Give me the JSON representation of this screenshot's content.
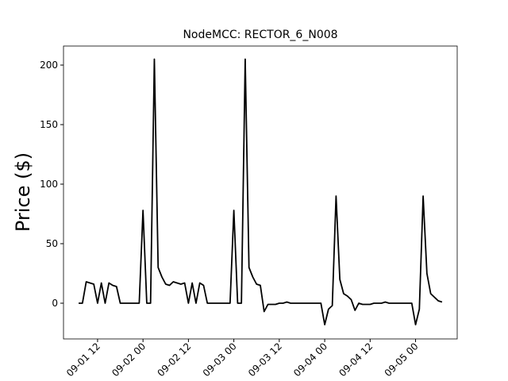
{
  "chart_data": {
    "type": "line",
    "title": "NodeMCC: RECTOR_6_N008",
    "y_label": "Price ($)",
    "x": [
      "09-01 07",
      "09-01 08",
      "09-01 09",
      "09-01 10",
      "09-01 11",
      "09-01 12",
      "09-01 13",
      "09-01 14",
      "09-01 15",
      "09-01 16",
      "09-01 17",
      "09-01 18",
      "09-01 19",
      "09-01 20",
      "09-01 21",
      "09-01 22",
      "09-01 23",
      "09-02 00",
      "09-02 01",
      "09-02 02",
      "09-02 03",
      "09-02 04",
      "09-02 05",
      "09-02 06",
      "09-02 07",
      "09-02 08",
      "09-02 09",
      "09-02 10",
      "09-02 11",
      "09-02 12",
      "09-02 13",
      "09-02 14",
      "09-02 15",
      "09-02 16",
      "09-02 17",
      "09-02 18",
      "09-02 19",
      "09-02 20",
      "09-02 21",
      "09-02 22",
      "09-02 23",
      "09-03 00",
      "09-03 01",
      "09-03 02",
      "09-03 03",
      "09-03 04",
      "09-03 05",
      "09-03 06",
      "09-03 07",
      "09-03 08",
      "09-03 09",
      "09-03 10",
      "09-03 11",
      "09-03 12",
      "09-03 13",
      "09-03 14",
      "09-03 15",
      "09-03 16",
      "09-03 17",
      "09-03 18",
      "09-03 19",
      "09-03 20",
      "09-03 21",
      "09-03 22",
      "09-03 23",
      "09-04 00",
      "09-04 01",
      "09-04 02",
      "09-04 03",
      "09-04 04",
      "09-04 05",
      "09-04 06",
      "09-04 07",
      "09-04 08",
      "09-04 09",
      "09-04 10",
      "09-04 11",
      "09-04 12",
      "09-04 13",
      "09-04 14",
      "09-04 15",
      "09-04 16",
      "09-04 17",
      "09-04 18",
      "09-04 19",
      "09-04 20",
      "09-04 21",
      "09-04 22",
      "09-04 23",
      "09-05 00",
      "09-05 01",
      "09-05 02",
      "09-05 03",
      "09-05 04",
      "09-05 05",
      "09-05 06",
      "09-05 07"
    ],
    "series": [
      {
        "color": "#000000",
        "values": [
          0,
          0,
          18,
          17,
          16,
          0,
          17,
          0,
          17,
          15,
          14,
          0,
          0,
          0,
          0,
          0,
          0,
          78,
          0,
          0,
          205,
          30,
          22,
          16,
          15,
          18,
          17,
          16,
          17,
          0,
          17,
          0,
          17,
          15,
          0,
          0,
          0,
          0,
          0,
          0,
          0,
          78,
          0,
          0,
          205,
          30,
          22,
          16,
          15,
          -7,
          -1,
          -1,
          -1,
          0,
          0,
          1,
          0,
          0,
          0,
          0,
          0,
          0,
          0,
          0,
          0,
          -18,
          -5,
          -2,
          90,
          20,
          8,
          6,
          3,
          -6,
          0,
          -1,
          -1,
          -1,
          0,
          0,
          0,
          1,
          0,
          0,
          0,
          0,
          0,
          0,
          0,
          -18,
          -5,
          90,
          25,
          8,
          5,
          2,
          1
        ]
      }
    ],
    "xlim": [
      "09-01 03",
      "09-05 11"
    ],
    "xticks": [
      "09-01 12",
      "09-02 00",
      "09-02 12",
      "09-03 00",
      "09-03 12",
      "09-04 00",
      "09-04 12",
      "09-05 00"
    ],
    "ylim": [
      -30,
      216
    ],
    "yticks": [
      0,
      50,
      100,
      150,
      200
    ]
  }
}
